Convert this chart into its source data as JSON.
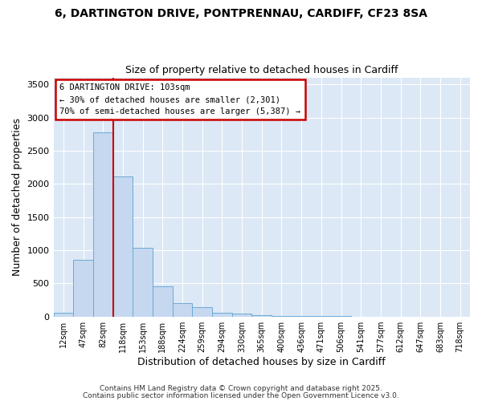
{
  "title_line1": "6, DARTINGTON DRIVE, PONTPRENNAU, CARDIFF, CF23 8SA",
  "title_line2": "Size of property relative to detached houses in Cardiff",
  "xlabel": "Distribution of detached houses by size in Cardiff",
  "ylabel": "Number of detached properties",
  "bar_color": "#c5d8f0",
  "bar_edge_color": "#6aaad4",
  "axes_bg_color": "#dce8f5",
  "fig_bg_color": "#ffffff",
  "grid_color": "#ffffff",
  "annotation_box_color": "#cc0000",
  "vline_color": "#cc0000",
  "annotation_title": "6 DARTINGTON DRIVE: 103sqm",
  "annotation_line1": "← 30% of detached houses are smaller (2,301)",
  "annotation_line2": "70% of semi-detached houses are larger (5,387) →",
  "categories": [
    "12sqm",
    "47sqm",
    "82sqm",
    "118sqm",
    "153sqm",
    "188sqm",
    "224sqm",
    "259sqm",
    "294sqm",
    "330sqm",
    "365sqm",
    "400sqm",
    "436sqm",
    "471sqm",
    "506sqm",
    "541sqm",
    "577sqm",
    "612sqm",
    "647sqm",
    "683sqm",
    "718sqm"
  ],
  "values": [
    55,
    850,
    2780,
    2110,
    1030,
    450,
    205,
    140,
    60,
    40,
    20,
    10,
    5,
    3,
    2,
    1,
    1,
    0,
    0,
    0,
    0
  ],
  "ylim": [
    0,
    3600
  ],
  "yticks": [
    0,
    500,
    1000,
    1500,
    2000,
    2500,
    3000,
    3500
  ],
  "vline_x_index": 2.5,
  "footer_line1": "Contains HM Land Registry data © Crown copyright and database right 2025.",
  "footer_line2": "Contains public sector information licensed under the Open Government Licence v3.0."
}
